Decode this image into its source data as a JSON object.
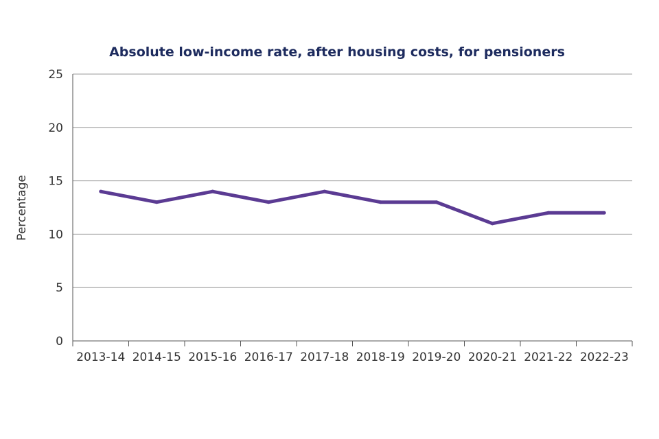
{
  "chart_data": {
    "type": "line",
    "title": "Absolute low-income rate, after housing costs, for pensioners",
    "xlabel": "",
    "ylabel": "Percentage",
    "categories": [
      "2013-14",
      "2014-15",
      "2015-16",
      "2016-17",
      "2017-18",
      "2018-19",
      "2019-20",
      "2020-21",
      "2021-22",
      "2022-23"
    ],
    "series": [
      {
        "name": "Pensioners",
        "values": [
          14,
          13,
          14,
          13,
          14,
          13,
          13,
          11,
          12,
          12
        ],
        "color": "#5b3b93"
      }
    ],
    "ylim": [
      0,
      25
    ],
    "yticks": [
      "0",
      "5",
      "10",
      "15",
      "20",
      "25"
    ],
    "grid": true,
    "legend": "none"
  }
}
